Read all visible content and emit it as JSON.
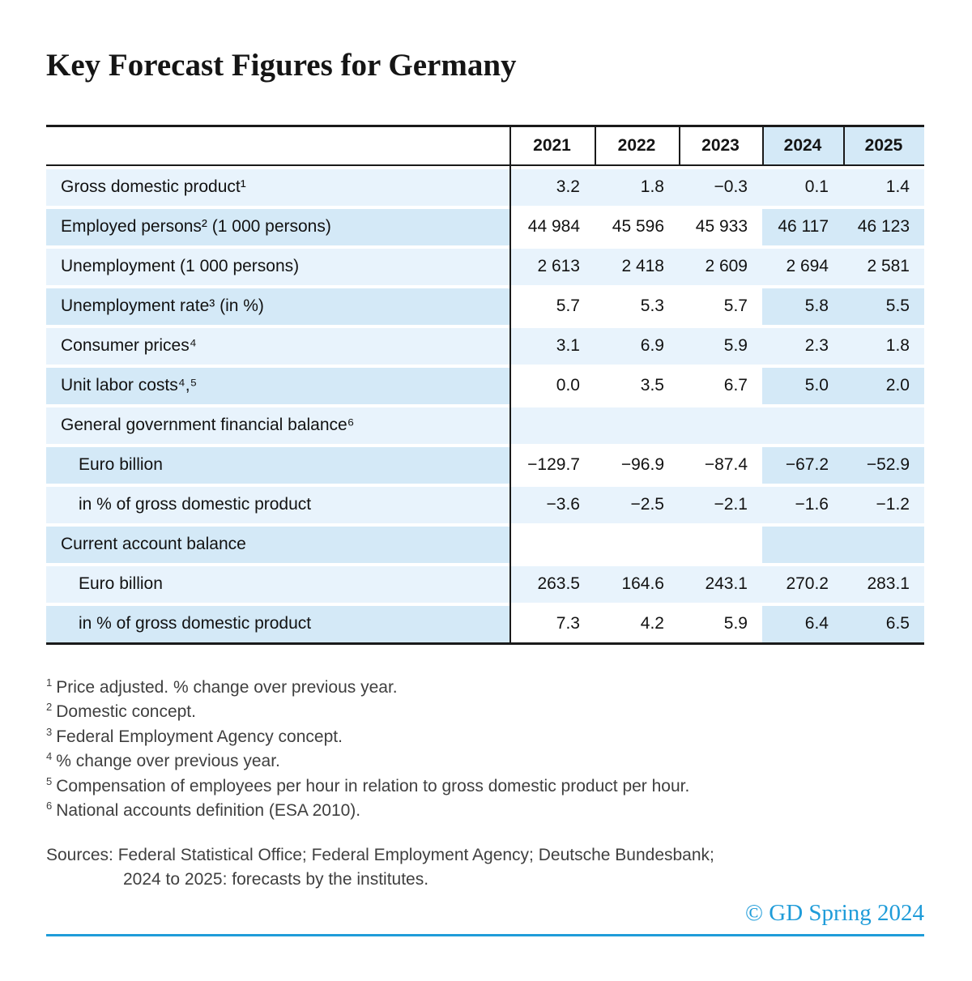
{
  "title": "Key Forecast Figures for Germany",
  "chart_data": {
    "type": "table",
    "title": "Key Forecast Figures for Germany",
    "year_columns": [
      "2021",
      "2022",
      "2023",
      "2024",
      "2025"
    ],
    "forecast_years": [
      "2024",
      "2025"
    ],
    "rows": [
      {
        "label": "Gross domestic product¹",
        "indent": false,
        "section": false,
        "values": [
          "3.2",
          "1.8",
          "−0.3",
          "0.1",
          "1.4"
        ]
      },
      {
        "label": "Employed persons² (1 000 persons)",
        "indent": false,
        "section": false,
        "values": [
          "44 984",
          "45 596",
          "45 933",
          "46 117",
          "46 123"
        ]
      },
      {
        "label": "Unemployment (1 000 persons)",
        "indent": false,
        "section": false,
        "values": [
          "2 613",
          "2 418",
          "2 609",
          "2 694",
          "2 581"
        ]
      },
      {
        "label": "Unemployment rate³ (in %)",
        "indent": false,
        "section": false,
        "values": [
          "5.7",
          "5.3",
          "5.7",
          "5.8",
          "5.5"
        ]
      },
      {
        "label": "Consumer prices⁴",
        "indent": false,
        "section": false,
        "values": [
          "3.1",
          "6.9",
          "5.9",
          "2.3",
          "1.8"
        ]
      },
      {
        "label": "Unit labor costs⁴,⁵",
        "indent": false,
        "section": false,
        "values": [
          "0.0",
          "3.5",
          "6.7",
          "5.0",
          "2.0"
        ]
      },
      {
        "label": "General government financial balance⁶",
        "indent": false,
        "section": true,
        "values": [
          "",
          "",
          "",
          "",
          ""
        ]
      },
      {
        "label": "Euro billion",
        "indent": true,
        "section": false,
        "values": [
          "−129.7",
          "−96.9",
          "−87.4",
          "−67.2",
          "−52.9"
        ]
      },
      {
        "label": "in % of gross domestic product",
        "indent": true,
        "section": false,
        "values": [
          "−3.6",
          "−2.5",
          "−2.1",
          "−1.6",
          "−1.2"
        ]
      },
      {
        "label": "Current account balance",
        "indent": false,
        "section": true,
        "values": [
          "",
          "",
          "",
          "",
          ""
        ]
      },
      {
        "label": "Euro billion",
        "indent": true,
        "section": false,
        "values": [
          "263.5",
          "164.6",
          "243.1",
          "270.2",
          "283.1"
        ]
      },
      {
        "label": "in % of gross domestic product",
        "indent": true,
        "section": false,
        "values": [
          "7.3",
          "4.2",
          "5.9",
          "6.4",
          "6.5"
        ]
      }
    ]
  },
  "footnotes": [
    {
      "marker": "1",
      "text": "Price adjusted. % change over previous year."
    },
    {
      "marker": "2",
      "text": "Domestic concept."
    },
    {
      "marker": "3",
      "text": "Federal Employment Agency concept."
    },
    {
      "marker": "4",
      "text": "% change over previous year."
    },
    {
      "marker": "5",
      "text": "Compensation of employees per hour in relation to gross domestic product per hour."
    },
    {
      "marker": "6",
      "text": "National accounts definition (ESA 2010)."
    }
  ],
  "sources": {
    "line1": "Sources: Federal Statistical Office; Federal Employment Agency; Deutsche Bundesbank;",
    "line2": "2024 to 2025: forecasts by the institutes."
  },
  "footer": {
    "copyright": "© GD Spring 2024"
  },
  "colors": {
    "accent_blue": "#1f9cd9",
    "row_light": "#e8f3fc",
    "row_dark": "#d4e9f7",
    "border_black": "#1a1a1a"
  }
}
